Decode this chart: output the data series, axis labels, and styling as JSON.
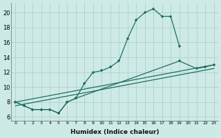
{
  "xlabel": "Humidex (Indice chaleur)",
  "background_color": "#cdeae7",
  "grid_color": "#b0d0cc",
  "line_color": "#1e6e5e",
  "xlim_min": -0.5,
  "xlim_max": 23.5,
  "ylim_min": 5.5,
  "ylim_max": 21.3,
  "yticks": [
    6,
    8,
    10,
    12,
    14,
    16,
    18,
    20
  ],
  "xticks": [
    0,
    1,
    2,
    3,
    4,
    5,
    6,
    7,
    8,
    9,
    10,
    11,
    12,
    13,
    14,
    15,
    16,
    17,
    18,
    19,
    20,
    21,
    22,
    23
  ],
  "curve1_x": [
    0,
    1,
    2,
    3,
    4,
    5,
    6,
    7,
    8,
    9,
    10,
    11,
    12,
    13,
    14,
    15,
    16,
    17,
    18,
    19
  ],
  "curve1_y": [
    8.0,
    7.5,
    7.0,
    7.0,
    7.0,
    6.5,
    8.0,
    8.5,
    10.5,
    12.0,
    12.2,
    12.7,
    13.5,
    16.5,
    19.0,
    20.0,
    20.5,
    19.5,
    19.5,
    15.5
  ],
  "curve2_x": [
    0,
    1,
    2,
    3,
    4,
    5,
    6,
    7,
    19,
    21,
    22,
    23
  ],
  "curve2_y": [
    8.0,
    7.5,
    7.0,
    7.0,
    7.0,
    6.5,
    8.0,
    8.5,
    13.5,
    12.5,
    12.7,
    13.0
  ],
  "line3_x": [
    0,
    23
  ],
  "line3_y": [
    8.0,
    13.0
  ],
  "line4_x": [
    0,
    23
  ],
  "line4_y": [
    7.5,
    12.5
  ]
}
